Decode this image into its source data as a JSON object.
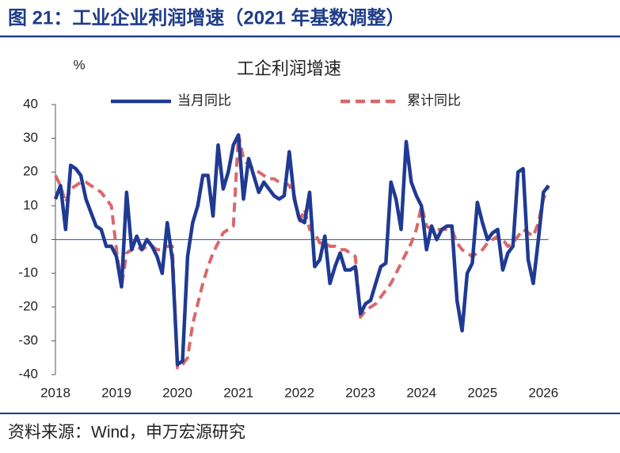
{
  "header": {
    "title": "图 21：工业企业利润增速（2021 年基数调整）"
  },
  "footer": {
    "source": "资料来源：Wind，申万宏源研究"
  },
  "chart_data": {
    "type": "line",
    "title": "工企利润增速",
    "y_label": "%",
    "categories": [
      "2018",
      null,
      null,
      null,
      null,
      null,
      null,
      null,
      null,
      null,
      null,
      null,
      "2019",
      null,
      null,
      null,
      null,
      null,
      null,
      null,
      null,
      null,
      null,
      null,
      "2020",
      null,
      null,
      null,
      null,
      null,
      null,
      null,
      null,
      null,
      null,
      null,
      "2021",
      null,
      null,
      null,
      null,
      null,
      null,
      null,
      null,
      null,
      null,
      null,
      "2022",
      null,
      null,
      null,
      null,
      null,
      null,
      null,
      null,
      null,
      null,
      null,
      "2023",
      null,
      null,
      null,
      null,
      null,
      null,
      null,
      null,
      null,
      null,
      null,
      "2024",
      null,
      null,
      null,
      null,
      null,
      null,
      null,
      null,
      null,
      null,
      null,
      "2025",
      null,
      null,
      null,
      null,
      null,
      null,
      null,
      null,
      null,
      null,
      null,
      "2026",
      null
    ],
    "series": [
      {
        "name": "当月同比",
        "color": "#1f3a93",
        "dashed": false,
        "values": [
          12,
          16,
          3,
          22,
          21,
          19,
          12,
          8,
          4,
          3,
          -2,
          -2,
          -5,
          -14,
          14,
          -3,
          1,
          -3,
          0,
          -2,
          -5,
          -10,
          5,
          -6,
          -37,
          -36,
          -5,
          5,
          10,
          19,
          19,
          7,
          28,
          15,
          20,
          28,
          31,
          12,
          24,
          19,
          14,
          17,
          15,
          13,
          12,
          13,
          26,
          12,
          6,
          5,
          14,
          -8,
          -6,
          1,
          -13,
          -8,
          -4,
          -9,
          -9,
          -8,
          -22,
          -19,
          -18,
          -13,
          -8,
          -7,
          17,
          12,
          3,
          29,
          17,
          13,
          10,
          -3,
          4,
          0,
          3,
          4,
          4,
          -18,
          -27,
          -10,
          -7,
          11,
          5,
          0,
          2,
          3,
          -9,
          -4,
          -2,
          20,
          21,
          -6,
          -13,
          0,
          14,
          16
        ]
      },
      {
        "name": "累计同比",
        "color": "#d9686a",
        "dashed": true,
        "values": [
          19,
          16,
          11,
          15,
          16,
          17,
          17,
          16,
          15,
          14,
          12,
          10,
          -3,
          -14,
          -4,
          -3,
          -2,
          -3,
          -2,
          -2,
          -3,
          -3,
          -2,
          -2,
          -38,
          -37,
          -35,
          -25,
          -19,
          -13,
          -8,
          -4,
          -1,
          2,
          3,
          4,
          31,
          24,
          22,
          21,
          20,
          19,
          18,
          18,
          17,
          17,
          16,
          13,
          5,
          9,
          3,
          2,
          -1,
          -1,
          -2,
          -2,
          -3,
          -3,
          -4,
          -5,
          -23,
          -21,
          -20,
          -19,
          -17,
          -15,
          -13,
          -10,
          -7,
          -4,
          -1,
          3,
          10,
          4,
          3,
          3,
          3,
          3,
          3,
          -1,
          -3,
          -4,
          -5,
          -4,
          -3,
          -1,
          0,
          1,
          0,
          -2,
          -1,
          1,
          3,
          2,
          1,
          5,
          12,
          16
        ]
      }
    ],
    "ylim": [
      -40,
      40
    ],
    "yticks": [
      -40,
      -30,
      -20,
      -10,
      0,
      10,
      20,
      30,
      40
    ],
    "grid": false
  }
}
